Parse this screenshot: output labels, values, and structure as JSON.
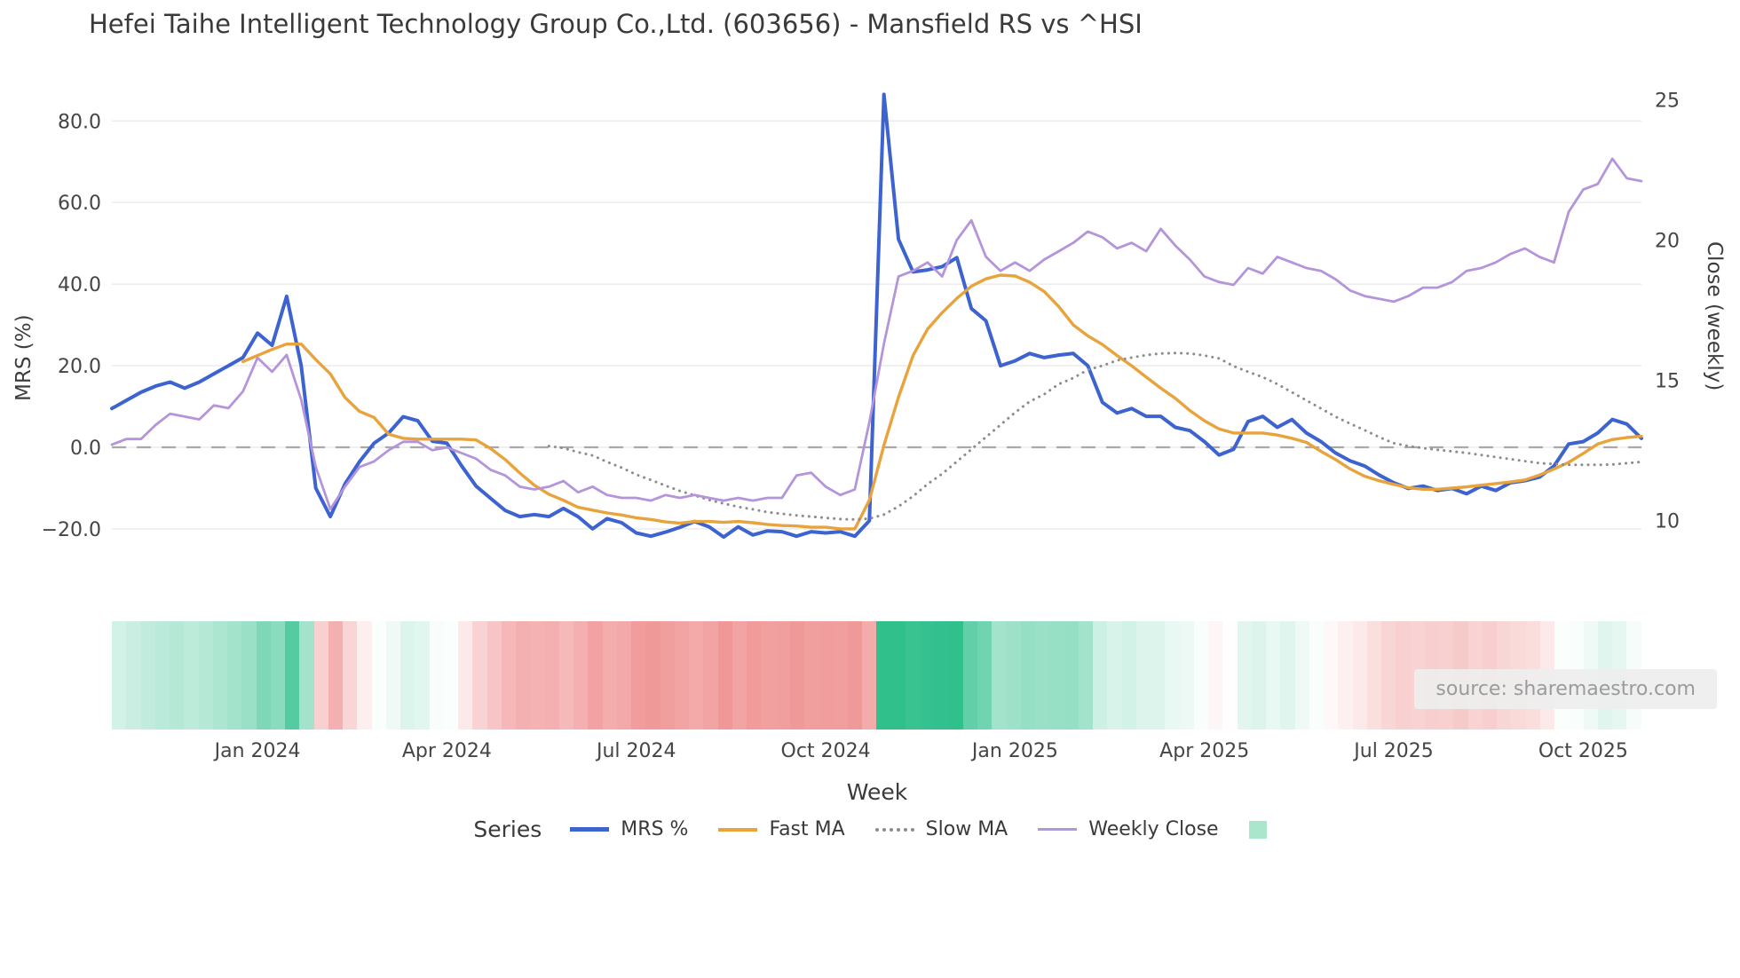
{
  "title": "Hefei Taihe Intelligent Technology Group Co.,Ltd. (603656) - Mansfield RS vs ^HSI",
  "source_watermark": "source: sharemaestro.com",
  "legend": {
    "title": "Series",
    "items": [
      {
        "label": "MRS %",
        "swatch": "line",
        "color": "#3c63cf",
        "weight": 5
      },
      {
        "label": "Fast MA",
        "swatch": "line",
        "color": "#e8a33c",
        "weight": 4
      },
      {
        "label": "Slow MA",
        "swatch": "dotted",
        "color": "#8c8c8c",
        "weight": 4
      },
      {
        "label": "Weekly Close",
        "swatch": "line",
        "color": "#b494da",
        "weight": 3.5
      },
      {
        "label": "",
        "swatch": "square",
        "color": "#a9e6cb",
        "weight": 0
      }
    ]
  },
  "chart_data": {
    "type": "line",
    "title": "Hefei Taihe Intelligent Technology Group Co.,Ltd. (603656) - Mansfield RS vs ^HSI",
    "x_label": "Week",
    "x_unit": "week_index",
    "x_range": [
      0,
      105
    ],
    "x_ticks": [
      {
        "week": 10,
        "label": "Jan 2024"
      },
      {
        "week": 23,
        "label": "Apr 2024"
      },
      {
        "week": 36,
        "label": "Jul 2024"
      },
      {
        "week": 49,
        "label": "Oct 2024"
      },
      {
        "week": 62,
        "label": "Jan 2025"
      },
      {
        "week": 75,
        "label": "Apr 2025"
      },
      {
        "week": 88,
        "label": "Jul 2025"
      },
      {
        "week": 101,
        "label": "Oct 2025"
      }
    ],
    "left_axis": {
      "label": "MRS (%)",
      "tick_labels": [
        "80.0",
        "60.0",
        "40.0",
        "20.0",
        "0.0",
        "−20.0"
      ],
      "tick_values": [
        80,
        60,
        40,
        20,
        0,
        -20
      ],
      "range": [
        -26,
        90
      ]
    },
    "right_axis": {
      "label": "Close (weekly)",
      "tick_labels": [
        "25",
        "20",
        "15",
        "10"
      ],
      "tick_values": [
        25,
        20,
        15,
        10
      ],
      "range": [
        9.4,
        25.6
      ]
    },
    "zero_line": {
      "axis": "left",
      "value": 0,
      "style": "dashed",
      "color": "#a8a8a8"
    },
    "grid": {
      "horizontal": true,
      "color": "#ededed"
    },
    "series": [
      {
        "name": "MRS %",
        "axis": "left",
        "color": "#3c63cf",
        "style": "solid",
        "width": 4,
        "values": [
          9.5,
          11.5,
          13.5,
          15,
          16,
          14.5,
          16,
          18,
          20,
          22,
          28,
          25,
          37,
          20,
          -10,
          -17,
          -9,
          -3.5,
          1,
          3.5,
          7.5,
          6.5,
          1.5,
          1,
          -4.5,
          -9.5,
          -12.5,
          -15.5,
          -17,
          -16.5,
          -17,
          -15,
          -17,
          -20,
          -17.5,
          -18.5,
          -21,
          -21.8,
          -20.8,
          -19.6,
          -18.2,
          -19.5,
          -22,
          -19.5,
          -21.5,
          -20.5,
          -20.7,
          -21.8,
          -20.7,
          -21,
          -20.7,
          -21.8,
          -18,
          86.5,
          51,
          43,
          43.5,
          44.3,
          46.5,
          34,
          31,
          20,
          21.2,
          23,
          22,
          22.6,
          23,
          20,
          11,
          8.4,
          9.5,
          7.6,
          7.6,
          4.9,
          4.1,
          1.4,
          -1.9,
          -0.5,
          6.3,
          7.6,
          4.9,
          6.8,
          3.5,
          1.4,
          -1.4,
          -3.3,
          -4.6,
          -6.8,
          -8.7,
          -10.1,
          -9.5,
          -10.6,
          -10.1,
          -11.4,
          -9.5,
          -10.6,
          -8.7,
          -8.2,
          -7.3,
          -4.6,
          0.8,
          1.4,
          3.5,
          6.8,
          5.7,
          2.2
        ]
      },
      {
        "name": "Fast MA",
        "axis": "left",
        "color": "#e8a33c",
        "style": "solid",
        "width": 3.4,
        "values": [
          null,
          null,
          null,
          null,
          null,
          null,
          null,
          null,
          null,
          21,
          22.5,
          24,
          25.3,
          25.3,
          21.5,
          18,
          12.2,
          8.8,
          7.3,
          3.2,
          2.2,
          2,
          2,
          2,
          2,
          1.8,
          -0.3,
          -3,
          -6.3,
          -9.3,
          -11.5,
          -13,
          -14.7,
          -15.4,
          -16.1,
          -16.6,
          -17.3,
          -17.7,
          -18.3,
          -18.6,
          -18.2,
          -18.2,
          -18.4,
          -18.2,
          -18.5,
          -18.9,
          -19.2,
          -19.3,
          -19.6,
          -19.6,
          -20,
          -20,
          -13,
          0.5,
          12.3,
          22.5,
          29,
          33,
          36.5,
          39.5,
          41.3,
          42.2,
          42,
          40.5,
          38.2,
          34.5,
          30,
          27.3,
          25.2,
          22.5,
          20,
          17.2,
          14.5,
          12,
          9,
          6.5,
          4.5,
          3.5,
          3.5,
          3.5,
          3,
          2.2,
          1.2,
          -1,
          -3,
          -5.3,
          -7.1,
          -8.2,
          -9.1,
          -9.9,
          -10.3,
          -10.3,
          -10,
          -9.7,
          -9.3,
          -8.9,
          -8.5,
          -8,
          -6.8,
          -5.3,
          -3.7,
          -1.5,
          0.8,
          1.9,
          2.4,
          2.7
        ]
      },
      {
        "name": "Slow MA",
        "axis": "left",
        "color": "#8c8c8c",
        "style": "dotted",
        "width": 3,
        "values": [
          null,
          null,
          null,
          null,
          null,
          null,
          null,
          null,
          null,
          null,
          null,
          null,
          null,
          null,
          null,
          null,
          null,
          null,
          null,
          null,
          null,
          null,
          null,
          null,
          null,
          null,
          null,
          null,
          null,
          null,
          0.3,
          -0.2,
          -1.2,
          -2,
          -3.6,
          -5,
          -6.7,
          -8,
          -9.4,
          -10.7,
          -11.8,
          -12.9,
          -13.8,
          -14.6,
          -15.2,
          -15.9,
          -16.3,
          -16.7,
          -17,
          -17.3,
          -17.6,
          -17.7,
          -17.5,
          -16.5,
          -14.5,
          -12,
          -9,
          -6.5,
          -3.5,
          -0.5,
          2.5,
          5.5,
          8.5,
          11.2,
          13,
          15.5,
          17,
          19,
          20,
          21.3,
          22,
          22.6,
          23,
          23.1,
          23,
          22.5,
          21.8,
          19.9,
          18.5,
          17.2,
          15.5,
          13.5,
          11.5,
          9.5,
          7.5,
          5.8,
          4.2,
          2.5,
          1,
          0.3,
          -0.2,
          -0.6,
          -1,
          -1.4,
          -1.9,
          -2.4,
          -2.9,
          -3.4,
          -3.9,
          -4.1,
          -4.3,
          -4.3,
          -4.3,
          -4.2,
          -3.9,
          -3.6
        ]
      },
      {
        "name": "Weekly Close",
        "axis": "right",
        "color": "#b494da",
        "style": "solid",
        "width": 2.8,
        "values": [
          12.7,
          12.9,
          12.9,
          13.4,
          13.8,
          13.7,
          13.6,
          14.1,
          14,
          14.6,
          15.8,
          15.3,
          15.9,
          14.3,
          11.9,
          10.4,
          11.2,
          11.9,
          12.1,
          12.5,
          12.8,
          12.8,
          12.5,
          12.6,
          12.4,
          12.2,
          11.8,
          11.6,
          11.2,
          11.1,
          11.2,
          11.4,
          11,
          11.2,
          10.9,
          10.8,
          10.8,
          10.7,
          10.9,
          10.8,
          10.9,
          10.8,
          10.7,
          10.8,
          10.7,
          10.8,
          10.8,
          11.6,
          11.7,
          11.2,
          10.9,
          11.1,
          13.5,
          16.3,
          18.7,
          18.9,
          19.2,
          18.7,
          20,
          20.7,
          19.4,
          18.9,
          19.2,
          18.9,
          19.3,
          19.6,
          19.9,
          20.3,
          20.1,
          19.7,
          19.9,
          19.6,
          20.4,
          19.8,
          19.3,
          18.7,
          18.5,
          18.4,
          19,
          18.8,
          19.4,
          19.2,
          19,
          18.9,
          18.6,
          18.2,
          18,
          17.9,
          17.8,
          18,
          18.3,
          18.3,
          18.5,
          18.9,
          19,
          19.2,
          19.5,
          19.7,
          19.4,
          19.2,
          21,
          21.8,
          22,
          22.9,
          22.2,
          22.1
        ]
      }
    ],
    "heatmap": {
      "based_on": "MRS %",
      "positive_color": "#2fc08c",
      "negative_color": "#ef8f8f",
      "positive_full_scale": 45,
      "negative_full_scale": 24
    }
  }
}
